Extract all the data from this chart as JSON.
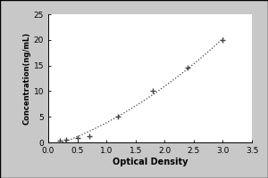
{
  "title": "",
  "xlabel": "Optical Density",
  "ylabel": "Concentration(ng/mL)",
  "xlim": [
    0,
    3.5
  ],
  "ylim": [
    0,
    25
  ],
  "xticks": [
    0,
    0.5,
    1,
    1.5,
    2,
    2.5,
    3,
    3.5
  ],
  "yticks": [
    0,
    5,
    10,
    15,
    20,
    25
  ],
  "data_x": [
    0.2,
    0.3,
    0.5,
    0.7,
    1.2,
    1.8,
    2.4,
    3.0
  ],
  "data_y": [
    0.3,
    0.5,
    0.8,
    1.2,
    5.0,
    10.0,
    14.5,
    20.0
  ],
  "line_color": "#444444",
  "marker_color": "#444444",
  "marker": "+",
  "background_color": "#ffffff",
  "fig_background": "#c8c8c8",
  "font_size": 6.5,
  "label_fontsize": 7,
  "ylabel_fontsize": 6
}
